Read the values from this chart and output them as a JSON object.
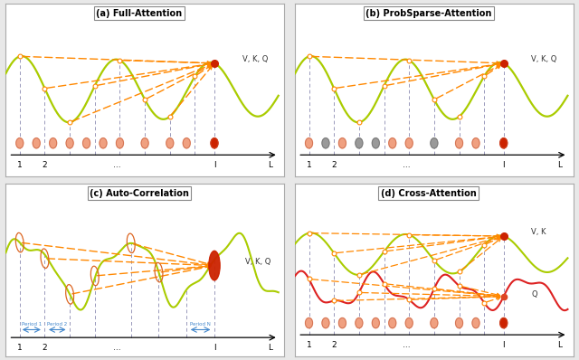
{
  "title_a": "(a) Full-Attention",
  "title_b": "(b) ProbSparse-Attention",
  "title_c": "(c) Auto-Correlation",
  "title_d": "(d) Cross-Attention",
  "bg_color": "#e8e8e8",
  "panel_bg": "#ffffff",
  "wave_color": "#aacc00",
  "wave_color2": "#dd2222",
  "orange_color": "#ff8800",
  "red_dot_color": "#cc2200",
  "salmon_dot_color": "#f0a080",
  "gray_dot_color": "#999999",
  "dashed_vert_color": "#9999bb",
  "blue_arrow_color": "#4488cc",
  "period_text_color": "#4488cc",
  "vkq_label": "V, K, Q",
  "vk_label": "V, K",
  "q_label": "Q"
}
